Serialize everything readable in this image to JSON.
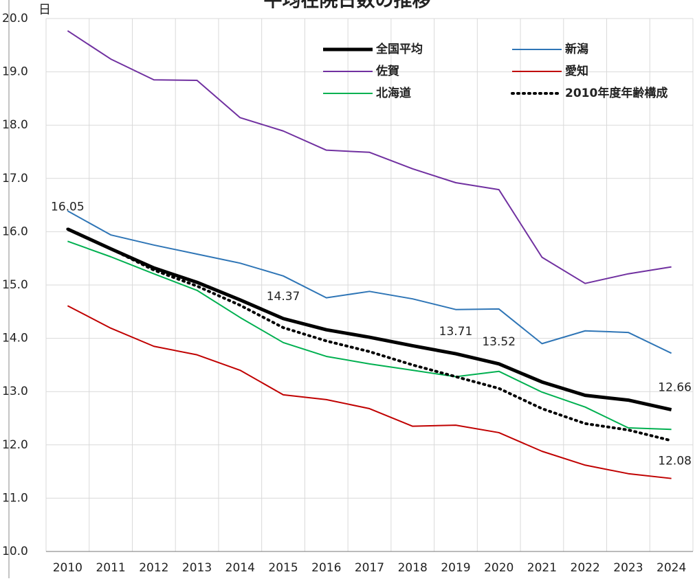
{
  "chart_data": {
    "type": "line",
    "title": "平均在院日数の推移",
    "y_unit": "日",
    "categories": [
      "2010",
      "2011",
      "2012",
      "2013",
      "2014",
      "2015",
      "2016",
      "2017",
      "2018",
      "2019",
      "2020",
      "2021",
      "2022",
      "2023",
      "2024"
    ],
    "ylim": [
      10,
      20
    ],
    "yticks": [
      {
        "value": 10,
        "label": "10.0"
      },
      {
        "value": 11,
        "label": "11.0"
      },
      {
        "value": 12,
        "label": "12.0"
      },
      {
        "value": 13,
        "label": "13.0"
      },
      {
        "value": 14,
        "label": "14.0"
      },
      {
        "value": 15,
        "label": "15.0"
      },
      {
        "value": 16,
        "label": "16.0"
      },
      {
        "value": 17,
        "label": "17.0"
      },
      {
        "value": 18,
        "label": "18.0"
      },
      {
        "value": 19,
        "label": "19.0"
      },
      {
        "value": 20,
        "label": "20.0"
      }
    ],
    "grid": true,
    "legend": "upper right",
    "series": [
      {
        "name": "全国平均",
        "color": "#000000",
        "line_width": 5,
        "line_style": "solid",
        "values": [
          16.05,
          15.68,
          15.32,
          15.05,
          14.72,
          14.37,
          14.16,
          14.02,
          13.86,
          13.71,
          13.52,
          13.18,
          12.93,
          12.84,
          12.66
        ],
        "value_labels": [
          "16.05",
          null,
          null,
          null,
          null,
          "14.37",
          null,
          null,
          null,
          "13.71",
          "13.52",
          null,
          null,
          null,
          "12.66"
        ]
      },
      {
        "name": "新潟",
        "color": "#2e75b6",
        "line_width": 2,
        "line_style": "solid",
        "values": [
          16.39,
          15.94,
          15.75,
          15.58,
          15.41,
          15.17,
          14.76,
          14.88,
          14.74,
          14.54,
          14.55,
          13.9,
          14.14,
          14.11,
          13.72
        ]
      },
      {
        "name": "佐賀",
        "color": "#7030a0",
        "line_width": 2,
        "line_style": "solid",
        "values": [
          19.77,
          19.24,
          18.85,
          18.84,
          18.14,
          17.89,
          17.53,
          17.49,
          17.18,
          16.92,
          16.79,
          15.52,
          15.03,
          15.21,
          15.34
        ]
      },
      {
        "name": "愛知",
        "color": "#c00000",
        "line_width": 2,
        "line_style": "solid",
        "values": [
          14.61,
          14.19,
          13.85,
          13.69,
          13.4,
          12.94,
          12.85,
          12.68,
          12.35,
          12.37,
          12.23,
          11.88,
          11.62,
          11.46,
          11.37
        ]
      },
      {
        "name": "北海道",
        "color": "#00b050",
        "line_width": 2,
        "line_style": "solid",
        "values": [
          15.82,
          15.53,
          15.21,
          14.9,
          14.39,
          13.92,
          13.66,
          13.52,
          13.4,
          13.28,
          13.38,
          12.99,
          12.71,
          12.32,
          12.29
        ]
      },
      {
        "name": "2010年度年齢構成",
        "color": "#000000",
        "line_width": 4,
        "line_style": "dotted",
        "values": [
          16.05,
          15.68,
          15.28,
          14.98,
          14.62,
          14.2,
          13.95,
          13.75,
          13.5,
          13.28,
          13.06,
          12.68,
          12.4,
          12.28,
          12.08
        ],
        "value_labels": [
          null,
          null,
          null,
          null,
          null,
          null,
          null,
          null,
          null,
          null,
          null,
          null,
          null,
          null,
          "12.08"
        ]
      }
    ]
  }
}
